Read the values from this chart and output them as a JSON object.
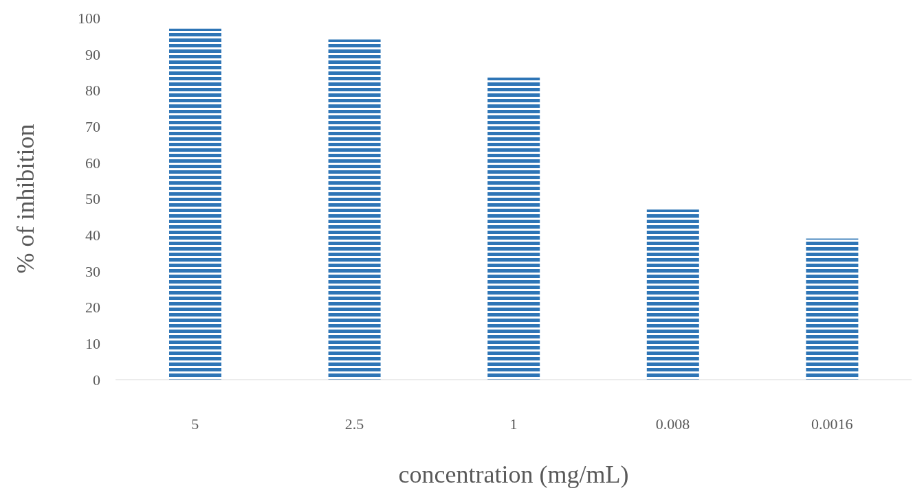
{
  "chart_data": {
    "type": "bar",
    "xlabel": "concentration (mg/mL)",
    "ylabel": "% of inhibition",
    "categories": [
      "5",
      "2.5",
      "1",
      "0.008",
      "0.0016"
    ],
    "values": [
      97,
      94,
      83.5,
      47,
      39
    ],
    "color": "#2e75b6",
    "ylim": [
      0,
      100
    ],
    "yticks": [
      0,
      10,
      20,
      30,
      40,
      50,
      60,
      70,
      80,
      90,
      100
    ],
    "grid": false,
    "legend": false
  }
}
